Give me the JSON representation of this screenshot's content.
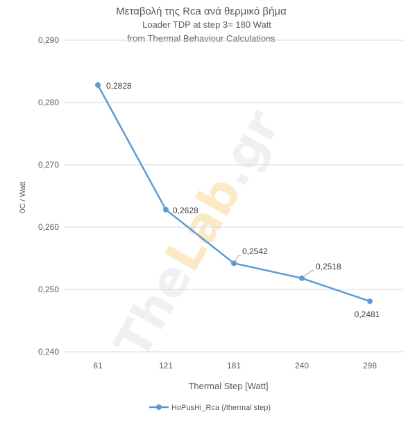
{
  "chart_data": {
    "type": "line",
    "title": "Μεταβολή της Rca ανά θερμικό βήμα",
    "subtitle_lines": [
      "Loader TDP at step 3= 180 Watt",
      "from Thermal Behaviour Calculations"
    ],
    "xlabel": "Thermal Step [Watt]",
    "ylabel": "0C / Watt",
    "categories": [
      "61",
      "121",
      "181",
      "240",
      "298"
    ],
    "series": [
      {
        "name": "HoPusHi_Rca (/thermal step)",
        "values": [
          0.2828,
          0.2628,
          0.2542,
          0.2518,
          0.2481
        ],
        "data_labels": [
          "0,2828",
          "0,2628",
          "0,2542",
          "0,2518",
          "0,2481"
        ]
      }
    ],
    "ylim": [
      0.24,
      0.29
    ],
    "yticks": [
      0.24,
      0.25,
      0.26,
      0.27,
      0.28,
      0.29
    ],
    "ytick_labels": [
      "0,240",
      "0,250",
      "0,260",
      "0,270",
      "0,280",
      "0,290"
    ],
    "grid": true,
    "legend_position": "bottom",
    "colors": {
      "series": "#5b9bd5",
      "grid": "#d9d9d9",
      "text": "#595959"
    }
  },
  "watermark": "TheLab.gr"
}
